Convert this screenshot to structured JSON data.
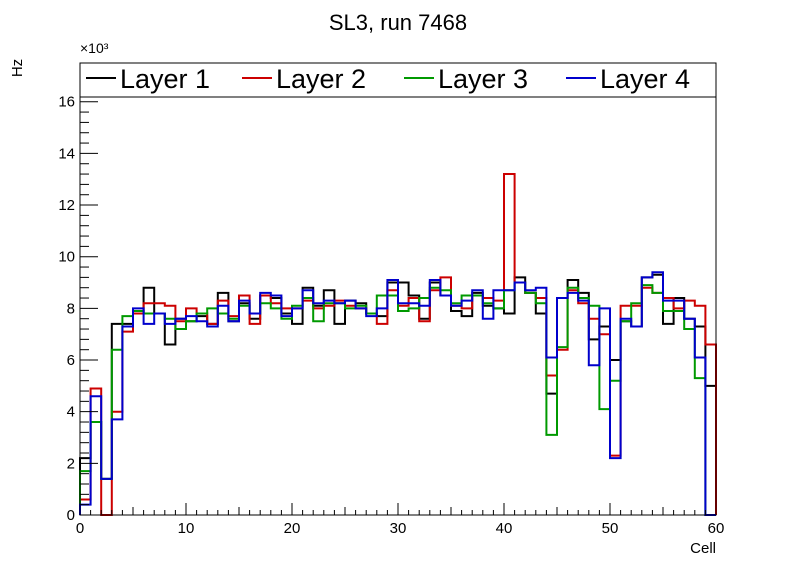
{
  "chart_data": {
    "type": "histogram-step",
    "title": "SL3, run 7468",
    "xlabel": "Cell",
    "ylabel": "Hz",
    "y_multiplier": "×10³",
    "xlim": [
      0,
      60
    ],
    "ylim": [
      0,
      17.5
    ],
    "x_ticks": [
      0,
      10,
      20,
      30,
      40,
      50,
      60
    ],
    "y_ticks": [
      0,
      2,
      4,
      6,
      8,
      10,
      12,
      14,
      16
    ],
    "legend_placement": "top",
    "grid": false,
    "series": [
      {
        "name": "Layer 1",
        "color": "#000000",
        "values": [
          2.2,
          3.6,
          1.4,
          7.4,
          7.4,
          7.8,
          8.8,
          7.8,
          6.6,
          7.6,
          7.5,
          7.7,
          7.4,
          8.6,
          7.5,
          8.2,
          7.6,
          8.5,
          8.4,
          7.8,
          7.4,
          8.8,
          8.1,
          8.7,
          7.4,
          8.3,
          8.2,
          7.8,
          7.7,
          9.0,
          9.0,
          8.5,
          7.6,
          9.0,
          8.5,
          7.9,
          7.7,
          8.6,
          8.1,
          8.0,
          7.8,
          9.2,
          8.6,
          7.8,
          4.7,
          8.4,
          9.1,
          8.6,
          6.8,
          7.3,
          6.0,
          7.5,
          7.3,
          9.2,
          9.3,
          7.4,
          8.4,
          7.6,
          7.3,
          5.0
        ]
      },
      {
        "name": "Layer 2",
        "color": "#cc0000",
        "values": [
          0.6,
          4.9,
          0.0,
          4.0,
          7.1,
          7.8,
          8.2,
          8.2,
          8.1,
          7.5,
          8.0,
          7.8,
          7.4,
          8.3,
          7.7,
          8.5,
          7.4,
          8.5,
          8.2,
          8.0,
          8.0,
          8.3,
          8.0,
          8.1,
          8.3,
          8.1,
          8.0,
          7.8,
          7.4,
          8.7,
          8.1,
          8.4,
          7.5,
          8.7,
          9.2,
          8.1,
          8.0,
          8.5,
          8.4,
          8.3,
          13.2,
          9.0,
          8.6,
          8.4,
          5.4,
          6.4,
          8.7,
          8.2,
          7.6,
          7.0,
          2.3,
          8.1,
          8.1,
          8.8,
          8.6,
          8.4,
          8.0,
          8.3,
          8.1,
          6.6
        ]
      },
      {
        "name": "Layer 3",
        "color": "#009900",
        "values": [
          1.7,
          3.6,
          1.4,
          6.4,
          7.7,
          7.9,
          7.8,
          7.8,
          7.6,
          7.2,
          7.5,
          7.8,
          8.0,
          7.8,
          7.6,
          8.1,
          7.8,
          8.2,
          8.0,
          7.6,
          8.1,
          8.4,
          7.5,
          8.2,
          8.2,
          8.0,
          8.1,
          7.8,
          8.5,
          8.5,
          7.9,
          8.0,
          8.4,
          8.8,
          8.7,
          8.2,
          8.5,
          8.5,
          8.2,
          8.0,
          8.7,
          9.0,
          8.6,
          8.2,
          3.1,
          6.5,
          8.8,
          8.4,
          8.1,
          4.1,
          5.2,
          7.5,
          8.2,
          8.9,
          8.6,
          7.9,
          7.9,
          7.2,
          5.3,
          0.0
        ]
      },
      {
        "name": "Layer 4",
        "color": "#0000cc",
        "values": [
          0.4,
          4.6,
          1.4,
          3.7,
          7.3,
          8.0,
          7.4,
          7.8,
          7.4,
          7.6,
          7.7,
          7.5,
          7.3,
          8.1,
          7.5,
          8.3,
          7.8,
          8.6,
          8.5,
          7.7,
          8.0,
          8.7,
          8.2,
          8.3,
          8.2,
          8.3,
          8.0,
          7.7,
          8.0,
          9.1,
          8.2,
          8.2,
          8.1,
          9.1,
          8.5,
          8.1,
          8.3,
          8.7,
          7.6,
          8.7,
          8.7,
          9.0,
          8.7,
          8.8,
          6.1,
          8.4,
          8.6,
          8.3,
          5.8,
          8.0,
          2.2,
          7.6,
          7.3,
          9.2,
          9.4,
          8.3,
          8.3,
          7.6,
          6.1,
          0.0
        ]
      }
    ]
  }
}
